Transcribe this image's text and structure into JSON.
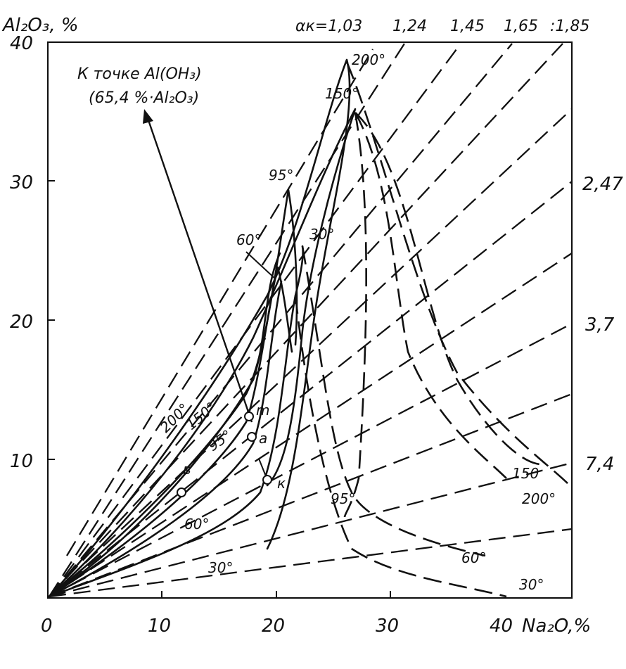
{
  "axes": {
    "y_label": "Al₂O₃, %",
    "x_label": "Na₂O,%",
    "x_ticks": [
      "0",
      "10",
      "20",
      "30",
      "40"
    ],
    "y_ticks": [
      "10",
      "20",
      "30",
      "40"
    ]
  },
  "alpha": {
    "label": "αк=1,03",
    "top_values": [
      "1,24",
      "1,45",
      "1,65",
      ":1,85"
    ],
    "right_values": [
      "2,47",
      "3,7",
      "7,4"
    ]
  },
  "annotation": {
    "line1": "К точке Al(OH₃)",
    "line2": "(65,4 %·Al₂O₃)"
  },
  "temperature_labels": {
    "t200_top": "200°",
    "t150_top": "150°",
    "t95_top": "95°",
    "t60_top": "60°",
    "t30_mid": "30°",
    "t200_left": "200°",
    "t150_left": "150°",
    "t95_left": "95°",
    "t60_low": "60°",
    "t30_low": "30°",
    "t150_right": "150",
    "t200_right": "200°",
    "t95_bottom": "95°",
    "t60_bottom": "60°",
    "t30_bottom": "30°"
  },
  "points": {
    "m": "m",
    "a": "a",
    "k": "к",
    "b": "в"
  },
  "chart_data": {
    "type": "line",
    "xlabel": "Na₂O,%",
    "ylabel": "Al₂O₃, %",
    "xlim": [
      0,
      40
    ],
    "ylim": [
      0,
      40
    ],
    "points": [
      {
        "name": "m",
        "x": 17.8,
        "y": 13.1
      },
      {
        "name": "a",
        "x": 18.1,
        "y": 11.6
      },
      {
        "name": "к",
        "x": 19.3,
        "y": 8.4
      },
      {
        "name": "в",
        "x": 12.0,
        "y": 7.6
      }
    ]
  }
}
